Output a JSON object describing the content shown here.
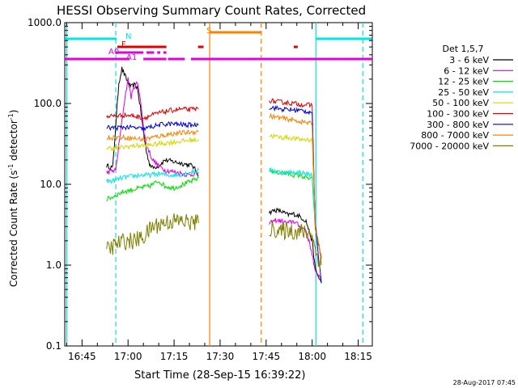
{
  "chart_data": {
    "type": "line",
    "title": "HESSI Observing Summary Count Rates, Corrected",
    "xlabel": "Start Time (28-Sep-15 16:39:22)",
    "ylabel": "Corrected Count Rate (s",
    "ylabel_sup": "-1",
    "ylabel_mid": " detector",
    "ylabel_end": ")",
    "y_scale": "log",
    "ylim": [
      0.1,
      1000
    ],
    "xlim_minutes": [
      39.37,
      139.6
    ],
    "x_tick_labels": [
      "16:45",
      "17:00",
      "17:15",
      "17:30",
      "17:45",
      "18:00",
      "18:15"
    ],
    "x_tick_minutes": [
      45,
      60,
      75,
      90,
      105,
      120,
      135
    ],
    "y_tick_labels": [
      "0.1",
      "1.0",
      "10.0",
      "100.0",
      "1000.0"
    ],
    "y_tick_values": [
      0.1,
      1,
      10,
      100,
      1000
    ],
    "legend_title": "Det 1,5,7",
    "legend_position": "right",
    "timestamp": "28-Aug-2017 07:45",
    "flags": [
      {
        "label": "N",
        "color": "#00e6e6",
        "segments": [
          [
            39.4,
            56.3
          ],
          [
            121.2,
            139.4
          ]
        ]
      },
      {
        "label": "S",
        "color": "#ff8000",
        "segments": [
          [
            86.6,
            103.5
          ]
        ]
      },
      {
        "label": "F",
        "color": "#e00000",
        "segments": [
          [
            56.5,
            72.5
          ],
          [
            82.8,
            84.6
          ],
          [
            114.0,
            115.3
          ]
        ]
      },
      {
        "label": "A0",
        "color": "#e000e0",
        "segments": [
          [
            56.0,
            65.0
          ],
          [
            66.0,
            68.5
          ],
          [
            69.5,
            70.5
          ],
          [
            71.5,
            72.5
          ]
        ]
      },
      {
        "label": "A1",
        "color": "#e000e0",
        "segments": [
          [
            39.4,
            60.5
          ],
          [
            65.0,
            72.5
          ],
          [
            73.0,
            78.5
          ],
          [
            80.5,
            139.4
          ]
        ]
      }
    ],
    "vlines": [
      {
        "t": 40.0,
        "color": "#00e6e6",
        "dash": false
      },
      {
        "t": 56.0,
        "color": "#00e6e6",
        "dash": true
      },
      {
        "t": 86.6,
        "color": "#ff8000",
        "dash": false
      },
      {
        "t": 103.4,
        "color": "#ff8000",
        "dash": true
      },
      {
        "t": 121.2,
        "color": "#00e6e6",
        "dash": false
      },
      {
        "t": 136.5,
        "color": "#00e6e6",
        "dash": true
      }
    ],
    "series": [
      {
        "name": "3 - 6 keV",
        "color": "#000000",
        "seg1": [
          [
            53,
            17
          ],
          [
            55,
            16
          ],
          [
            57,
            180
          ],
          [
            58,
            270
          ],
          [
            59,
            220
          ],
          [
            60,
            180
          ],
          [
            61,
            160
          ],
          [
            62,
            170
          ],
          [
            63,
            160
          ],
          [
            64,
            90
          ],
          [
            65,
            45
          ],
          [
            66,
            25
          ],
          [
            67,
            18
          ],
          [
            68,
            16
          ],
          [
            70,
            17
          ],
          [
            72,
            20
          ],
          [
            75,
            19
          ],
          [
            78,
            18
          ],
          [
            81,
            17
          ],
          [
            83,
            13
          ]
        ],
        "seg2": [
          [
            106,
            4.5
          ],
          [
            108,
            4.8
          ],
          [
            110,
            4.6
          ],
          [
            112,
            4.2
          ],
          [
            114,
            4.3
          ],
          [
            116,
            4.0
          ],
          [
            118,
            3.5
          ],
          [
            120,
            2.0
          ],
          [
            121,
            0.9
          ],
          [
            123,
            0.6
          ]
        ]
      },
      {
        "name": "6 - 12 keV",
        "color": "#e000e0",
        "seg1": [
          [
            53,
            14
          ],
          [
            56,
            15
          ],
          [
            58,
            60
          ],
          [
            59,
            120
          ],
          [
            60,
            200
          ],
          [
            61,
            120
          ],
          [
            62,
            160
          ],
          [
            63,
            180
          ],
          [
            64,
            120
          ],
          [
            65,
            50
          ],
          [
            66,
            30
          ],
          [
            67,
            25
          ],
          [
            68,
            20
          ],
          [
            70,
            17
          ],
          [
            72,
            15
          ],
          [
            76,
            14
          ],
          [
            80,
            13
          ],
          [
            83,
            14
          ]
        ],
        "seg2": [
          [
            106,
            3.2
          ],
          [
            108,
            3.6
          ],
          [
            110,
            3.5
          ],
          [
            112,
            3.3
          ],
          [
            114,
            3.5
          ],
          [
            116,
            3.0
          ],
          [
            118,
            2.7
          ],
          [
            120,
            1.4
          ],
          [
            121,
            0.8
          ],
          [
            123,
            0.7
          ]
        ]
      },
      {
        "name": "12 - 25 keV",
        "color": "#00e000",
        "seg1": [
          [
            53,
            6.5
          ],
          [
            55,
            7
          ],
          [
            58,
            8
          ],
          [
            61,
            8.5
          ],
          [
            64,
            9
          ],
          [
            67,
            9.5
          ],
          [
            70,
            11
          ],
          [
            72,
            9.5
          ],
          [
            75,
            9
          ],
          [
            78,
            10
          ],
          [
            81,
            11
          ],
          [
            83,
            12
          ]
        ],
        "seg2": [
          [
            106,
            15
          ],
          [
            108,
            14
          ],
          [
            110,
            14
          ],
          [
            112,
            13.5
          ],
          [
            114,
            13
          ],
          [
            116,
            13
          ],
          [
            118,
            12
          ],
          [
            120,
            11.5
          ],
          [
            121,
            3
          ],
          [
            123,
            1.2
          ]
        ]
      },
      {
        "name": "25 - 50 keV",
        "color": "#00e6e6",
        "seg1": [
          [
            53,
            11
          ],
          [
            55,
            11
          ],
          [
            58,
            12
          ],
          [
            61,
            12.5
          ],
          [
            64,
            13
          ],
          [
            67,
            13
          ],
          [
            70,
            13.5
          ],
          [
            73,
            13
          ],
          [
            76,
            13
          ],
          [
            80,
            14
          ],
          [
            83,
            15
          ]
        ],
        "seg2": [
          [
            106,
            15
          ],
          [
            108,
            14.5
          ],
          [
            110,
            14
          ],
          [
            112,
            14
          ],
          [
            114,
            14
          ],
          [
            116,
            14
          ],
          [
            118,
            13.5
          ],
          [
            120,
            13
          ],
          [
            121,
            3
          ],
          [
            123,
            1.2
          ]
        ]
      },
      {
        "name": "50 - 100 keV",
        "color": "#d6d600",
        "seg1": [
          [
            53,
            28
          ],
          [
            56,
            28
          ],
          [
            59,
            29
          ],
          [
            62,
            30
          ],
          [
            65,
            30
          ],
          [
            68,
            31
          ],
          [
            71,
            32
          ],
          [
            74,
            33
          ],
          [
            77,
            34
          ],
          [
            80,
            35
          ],
          [
            83,
            36
          ]
        ],
        "seg2": [
          [
            106,
            40
          ],
          [
            108,
            39
          ],
          [
            110,
            38
          ],
          [
            112,
            38
          ],
          [
            114,
            37
          ],
          [
            116,
            36
          ],
          [
            118,
            36
          ],
          [
            120,
            35
          ],
          [
            121,
            3
          ],
          [
            123,
            1.2
          ]
        ]
      },
      {
        "name": "100 - 300 keV",
        "color": "#e00000",
        "seg1": [
          [
            53,
            70
          ],
          [
            56,
            70
          ],
          [
            59,
            72
          ],
          [
            62,
            70
          ],
          [
            65,
            66
          ],
          [
            68,
            72
          ],
          [
            71,
            78
          ],
          [
            74,
            82
          ],
          [
            77,
            85
          ],
          [
            80,
            84
          ],
          [
            83,
            86
          ]
        ],
        "seg2": [
          [
            106,
            110
          ],
          [
            108,
            105
          ],
          [
            110,
            104
          ],
          [
            112,
            102
          ],
          [
            114,
            100
          ],
          [
            116,
            98
          ],
          [
            118,
            96
          ],
          [
            120,
            95
          ],
          [
            121,
            3
          ],
          [
            123,
            1.2
          ]
        ]
      },
      {
        "name": "300 - 800 keV",
        "color": "#0000e0",
        "seg1": [
          [
            53,
            50
          ],
          [
            56,
            50
          ],
          [
            59,
            51
          ],
          [
            62,
            50
          ],
          [
            65,
            48
          ],
          [
            68,
            52
          ],
          [
            71,
            55
          ],
          [
            74,
            56
          ],
          [
            77,
            55
          ],
          [
            80,
            54
          ],
          [
            83,
            55
          ]
        ],
        "seg2": [
          [
            106,
            90
          ],
          [
            108,
            88
          ],
          [
            110,
            85
          ],
          [
            112,
            84
          ],
          [
            114,
            83
          ],
          [
            116,
            82
          ],
          [
            118,
            80
          ],
          [
            120,
            78
          ],
          [
            121,
            3
          ],
          [
            123,
            0.6
          ]
        ]
      },
      {
        "name": "800 - 7000 keV",
        "color": "#ff8000",
        "seg1": [
          [
            53,
            38
          ],
          [
            56,
            38
          ],
          [
            59,
            38
          ],
          [
            62,
            37
          ],
          [
            65,
            36
          ],
          [
            68,
            38
          ],
          [
            71,
            40
          ],
          [
            74,
            42
          ],
          [
            77,
            43
          ],
          [
            80,
            44
          ],
          [
            83,
            45
          ]
        ],
        "seg2": [
          [
            106,
            70
          ],
          [
            108,
            68
          ],
          [
            110,
            66
          ],
          [
            112,
            64
          ],
          [
            114,
            62
          ],
          [
            116,
            60
          ],
          [
            118,
            58
          ],
          [
            120,
            56
          ],
          [
            121,
            3
          ],
          [
            123,
            1.2
          ]
        ]
      },
      {
        "name": "7000 - 20000 keV",
        "color": "#808000",
        "seg1": [
          [
            53,
            1.5
          ],
          [
            56,
            1.8
          ],
          [
            59,
            2.0
          ],
          [
            62,
            2.0
          ],
          [
            65,
            2.2
          ],
          [
            68,
            3.0
          ],
          [
            71,
            3.3
          ],
          [
            74,
            3.5
          ],
          [
            77,
            3.5
          ],
          [
            80,
            3.4
          ],
          [
            83,
            3.3
          ]
        ],
        "seg2": [
          [
            106,
            2.8
          ],
          [
            108,
            2.8
          ],
          [
            110,
            2.5
          ],
          [
            112,
            2.8
          ],
          [
            114,
            2.6
          ],
          [
            116,
            2.6
          ],
          [
            118,
            2.5
          ],
          [
            120,
            2.5
          ],
          [
            121,
            1.5
          ],
          [
            123,
            1.0
          ]
        ]
      }
    ]
  }
}
